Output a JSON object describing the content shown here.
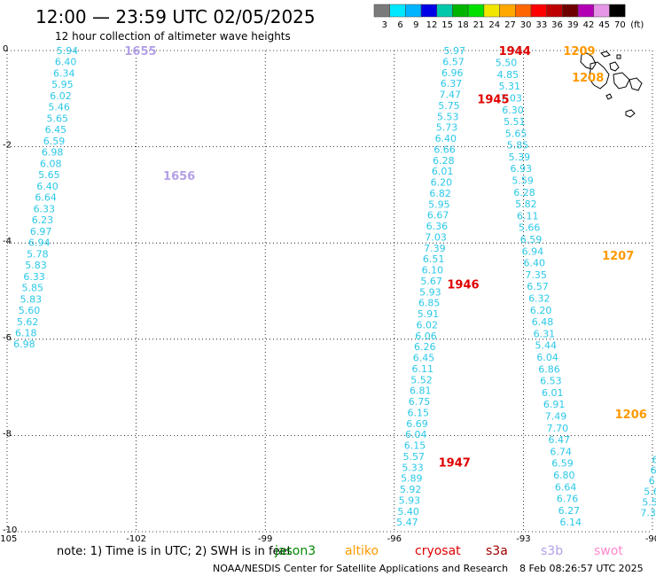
{
  "header": {
    "title": "12:00 — 23:59 UTC 02/05/2025",
    "subtitle": "12 hour collection of altimeter wave heights"
  },
  "color_scale": {
    "labels": [
      "3",
      "6",
      "9",
      "12",
      "15",
      "18",
      "21",
      "24",
      "27",
      "30",
      "33",
      "36",
      "39",
      "42",
      "45",
      "70"
    ],
    "colors": [
      "#7a7a7a",
      "#00e8ff",
      "#00b4ff",
      "#0000e6",
      "#00c8aa",
      "#00b400",
      "#00e100",
      "#f0e600",
      "#ffa800",
      "#ff6600",
      "#ff0000",
      "#be0000",
      "#6e0000",
      "#b400b4",
      "#e696e6",
      "#000000"
    ],
    "unit": "(ft)"
  },
  "axes": {
    "x_ticks": [
      "-105",
      "-102",
      "-99",
      "-96",
      "-93",
      "-90"
    ],
    "y_ticks": [
      "0",
      "-2",
      "-4",
      "-6",
      "-8",
      "-10"
    ]
  },
  "chart_data": {
    "type": "scatter",
    "xlim": [
      -105,
      -90
    ],
    "ylim": [
      -10,
      0
    ],
    "unit": "ft",
    "tracks": [
      {
        "values": [
          "5.94",
          "6.40",
          "6.34",
          "5.95",
          "6.02",
          "5.46",
          "5.65",
          "6.45",
          "6.59",
          "6.98",
          "6.08",
          "5.65",
          "6.40",
          "6.64",
          "6.33",
          "6.23",
          "6.97",
          "6.94",
          "5.78",
          "5.83",
          "6.33",
          "5.85",
          "5.83",
          "5.60",
          "5.62",
          "6.18",
          "6.98"
        ],
        "lon_start": -103.6,
        "lat_start": 0.0,
        "lon_end": -104.6,
        "lat_end": -6.1
      },
      {
        "values": [
          "5.97",
          "6.57",
          "6.96",
          "6.37",
          "7.47",
          "5.75",
          "5.53",
          "5.73",
          "6.40",
          "6.66",
          "6.28",
          "6.01",
          "6.20",
          "6.82",
          "5.95",
          "6.67",
          "6.36",
          "7.03",
          "7.39",
          "6.51",
          "6.10",
          "5.67",
          "5.93",
          "6.85",
          "5.91",
          "6.02",
          "6.06",
          "6.26",
          "6.45",
          "6.11",
          "5.52",
          "6.81",
          "6.75",
          "6.15",
          "6.69",
          "6.04",
          "6.15",
          "5.57",
          "5.33",
          "5.89",
          "5.92",
          "5.93",
          "5.40",
          "5.47"
        ],
        "lon_start": -94.6,
        "lat_start": 0.0,
        "lon_end": -95.7,
        "lat_end": -9.8
      },
      {
        "values": [
          "5.50",
          "4.85",
          "5.31",
          "7.03",
          "6.30",
          "5.51",
          "5.65",
          "5.85",
          "5.39",
          "6.93",
          "5.59",
          "6.28",
          "5.82",
          "6.11",
          "5.66",
          "6.59",
          "6.94",
          "6.40",
          "7.35",
          "6.57",
          "6.32",
          "6.20",
          "6.48",
          "6.31",
          "5.44",
          "6.04",
          "6.86",
          "6.53",
          "6.01",
          "6.91",
          "7.49",
          "7.70",
          "6.47",
          "6.74",
          "6.59",
          "6.80",
          "6.64",
          "6.76",
          "6.27",
          "6.14"
        ],
        "lon_start": -93.4,
        "lat_start": -0.25,
        "lon_end": -91.9,
        "lat_end": -9.8
      },
      {
        "values": [
          "6.",
          "6.",
          "6.",
          "5.6",
          "5.5",
          "7.3"
        ],
        "lon_start": -89.9,
        "lat_start": -8.5,
        "lon_end": -90.1,
        "lat_end": -9.6
      }
    ],
    "pass_labels": [
      {
        "text": "1655",
        "lon": -101.9,
        "lat": 0.0,
        "color": "#b4a0e6"
      },
      {
        "text": "1656",
        "lon": -101.0,
        "lat": -2.6,
        "color": "#b4a0e6"
      },
      {
        "text": "1944",
        "lon": -93.2,
        "lat": 0.0,
        "color": "#e00000"
      },
      {
        "text": "1945",
        "lon": -93.7,
        "lat": -1.0,
        "color": "#e00000"
      },
      {
        "text": "1946",
        "lon": -94.4,
        "lat": -4.85,
        "color": "#e00000"
      },
      {
        "text": "1947",
        "lon": -94.6,
        "lat": -8.55,
        "color": "#e00000"
      },
      {
        "text": "1209",
        "lon": -91.7,
        "lat": 0.0,
        "color": "#ff9900"
      },
      {
        "text": "1208",
        "lon": -91.5,
        "lat": -0.55,
        "color": "#ff9900"
      },
      {
        "text": "1207",
        "lon": -90.8,
        "lat": -4.25,
        "color": "#ff9900"
      },
      {
        "text": "1206",
        "lon": -90.5,
        "lat": -7.55,
        "color": "#ff9900"
      }
    ]
  },
  "footer": {
    "note": "note:  1) Time is in UTC;  2) SWH is in feet",
    "satellites": [
      {
        "name": "jason3",
        "color": "#008800"
      },
      {
        "name": "altiko",
        "color": "#ff9900"
      },
      {
        "name": "cryosat",
        "color": "#e00000"
      },
      {
        "name": "s3a",
        "color": "#a00000"
      },
      {
        "name": "s3b",
        "color": "#b4a0e6"
      },
      {
        "name": "swot",
        "color": "#ff88cc"
      }
    ],
    "credit": "NOAA/NESDIS Center for Satellite Applications and Research",
    "timestamp": "8 Feb 08:26:57 UTC 2025"
  }
}
